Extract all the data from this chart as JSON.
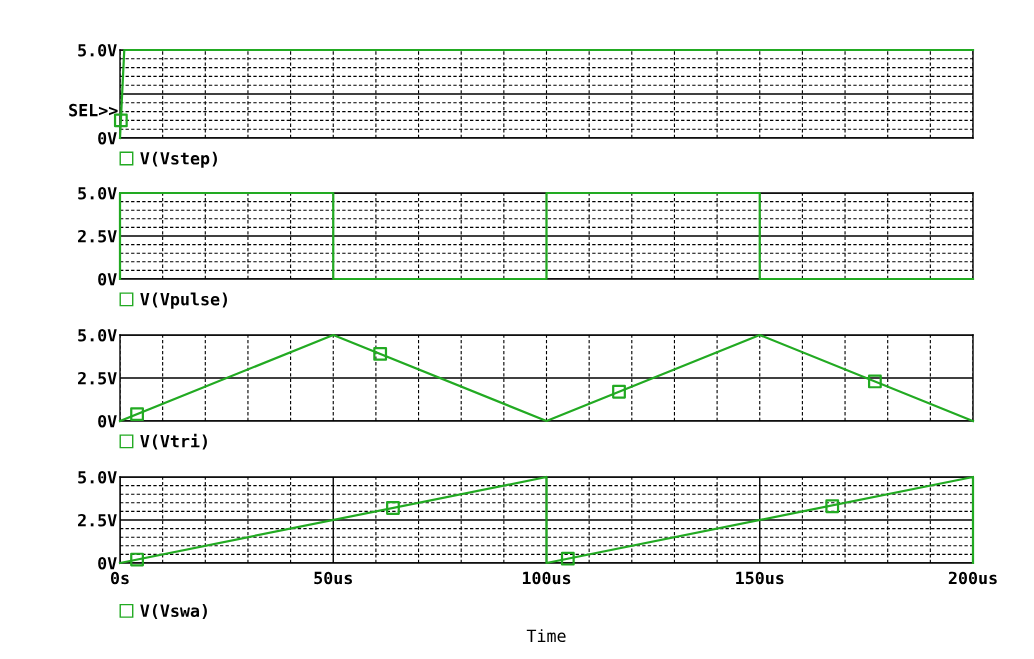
{
  "chart_data": [
    {
      "type": "line",
      "series": [
        {
          "name": "V(Vstep)",
          "color": "#22aa22",
          "x": [
            0,
            1,
            200
          ],
          "values": [
            0,
            5,
            5
          ]
        },
        {
          "type": "scatter",
          "color": "#22aa22",
          "marker": "square",
          "x": [
            0.2
          ],
          "values": [
            1.0
          ]
        }
      ],
      "xlim": [
        0,
        200
      ],
      "xticks": [
        {
          "value": 0,
          "label": null
        },
        {
          "value": 10,
          "label": null
        },
        {
          "value": 20,
          "label": null
        },
        {
          "value": 30,
          "label": null
        },
        {
          "value": 40,
          "label": null
        },
        {
          "value": 50,
          "label": null
        },
        {
          "value": 60,
          "label": null
        },
        {
          "value": 70,
          "label": null
        },
        {
          "value": 80,
          "label": null
        },
        {
          "value": 90,
          "label": null
        },
        {
          "value": 100,
          "label": null
        },
        {
          "value": 110,
          "label": null
        },
        {
          "value": 120,
          "label": null
        },
        {
          "value": 130,
          "label": null
        },
        {
          "value": 140,
          "label": null
        },
        {
          "value": 150,
          "label": null
        },
        {
          "value": 160,
          "label": null
        },
        {
          "value": 170,
          "label": null
        },
        {
          "value": 180,
          "label": null
        },
        {
          "value": 190,
          "label": null
        },
        {
          "value": 200,
          "label": null
        }
      ],
      "ylim": [
        0,
        5
      ],
      "yticks": [
        {
          "value": 0,
          "label": "0V"
        },
        {
          "value": 0.5,
          "label": null
        },
        {
          "value": 1.0,
          "label": null
        },
        {
          "value": 1.5,
          "label": null
        },
        {
          "value": 2.0,
          "label": null
        },
        {
          "value": 2.5,
          "label": null
        },
        {
          "value": 3.0,
          "label": null
        },
        {
          "value": 3.5,
          "label": null
        },
        {
          "value": 4.0,
          "label": null
        },
        {
          "value": 4.5,
          "label": null
        },
        {
          "value": 5,
          "label": "5.0V"
        }
      ],
      "ref_lines": [
        {
          "axis": "y",
          "value": 2.5,
          "label": null,
          "color": "#000000",
          "line_style": "solid"
        }
      ],
      "annotations": [
        "SEL>>"
      ],
      "grid": true,
      "legend": "bottom left",
      "tick_labels": "y",
      "marker": "none",
      "line_style": "solid"
    },
    {
      "type": "line",
      "series": [
        {
          "name": "V(Vpulse)",
          "color": "#22aa22",
          "x": [
            0,
            0,
            50,
            50,
            100,
            100,
            150,
            150,
            200
          ],
          "values": [
            0,
            5,
            5,
            0,
            0,
            5,
            5,
            0,
            0
          ]
        }
      ],
      "xlim": [
        0,
        200
      ],
      "xticks": [
        {
          "value": 0,
          "label": null
        },
        {
          "value": 10,
          "label": null
        },
        {
          "value": 20,
          "label": null
        },
        {
          "value": 30,
          "label": null
        },
        {
          "value": 40,
          "label": null
        },
        {
          "value": 50,
          "label": null
        },
        {
          "value": 60,
          "label": null
        },
        {
          "value": 70,
          "label": null
        },
        {
          "value": 80,
          "label": null
        },
        {
          "value": 90,
          "label": null
        },
        {
          "value": 100,
          "label": null
        },
        {
          "value": 110,
          "label": null
        },
        {
          "value": 120,
          "label": null
        },
        {
          "value": 130,
          "label": null
        },
        {
          "value": 140,
          "label": null
        },
        {
          "value": 150,
          "label": null
        },
        {
          "value": 160,
          "label": null
        },
        {
          "value": 170,
          "label": null
        },
        {
          "value": 180,
          "label": null
        },
        {
          "value": 190,
          "label": null
        },
        {
          "value": 200,
          "label": null
        }
      ],
      "ylim": [
        0,
        5
      ],
      "yticks": [
        {
          "value": 0,
          "label": "0V"
        },
        {
          "value": 0.5,
          "label": null
        },
        {
          "value": 1.0,
          "label": null
        },
        {
          "value": 1.5,
          "label": null
        },
        {
          "value": 2.0,
          "label": null
        },
        {
          "value": 2.5,
          "label": "2.5V"
        },
        {
          "value": 3.0,
          "label": null
        },
        {
          "value": 3.5,
          "label": null
        },
        {
          "value": 4.0,
          "label": null
        },
        {
          "value": 4.5,
          "label": null
        },
        {
          "value": 5,
          "label": "5.0V"
        }
      ],
      "ref_lines": [
        {
          "axis": "y",
          "value": 2.5,
          "label": null,
          "color": "#000000",
          "line_style": "solid"
        }
      ],
      "grid": true,
      "legend": "bottom left",
      "tick_labels": "y",
      "marker": "none",
      "line_style": "solid"
    },
    {
      "type": "line",
      "series": [
        {
          "name": "V(Vtri)",
          "color": "#22aa22",
          "x": [
            0,
            50,
            100,
            150,
            200
          ],
          "values": [
            0,
            5,
            0,
            5,
            0
          ]
        },
        {
          "type": "scatter",
          "color": "#22aa22",
          "marker": "square",
          "x": [
            4,
            61,
            117,
            177
          ],
          "values": [
            0.4,
            3.9,
            1.7,
            2.3
          ]
        }
      ],
      "xlim": [
        0,
        200
      ],
      "xticks": [
        {
          "value": 0,
          "label": null
        },
        {
          "value": 10,
          "label": null
        },
        {
          "value": 20,
          "label": null
        },
        {
          "value": 30,
          "label": null
        },
        {
          "value": 40,
          "label": null
        },
        {
          "value": 50,
          "label": null
        },
        {
          "value": 60,
          "label": null
        },
        {
          "value": 70,
          "label": null
        },
        {
          "value": 80,
          "label": null
        },
        {
          "value": 90,
          "label": null
        },
        {
          "value": 100,
          "label": null
        },
        {
          "value": 110,
          "label": null
        },
        {
          "value": 120,
          "label": null
        },
        {
          "value": 130,
          "label": null
        },
        {
          "value": 140,
          "label": null
        },
        {
          "value": 150,
          "label": null
        },
        {
          "value": 160,
          "label": null
        },
        {
          "value": 170,
          "label": null
        },
        {
          "value": 180,
          "label": null
        },
        {
          "value": 190,
          "label": null
        },
        {
          "value": 200,
          "label": null
        }
      ],
      "ylim": [
        0,
        5
      ],
      "yticks": [
        {
          "value": 0,
          "label": "0V"
        },
        {
          "value": 2.5,
          "label": "2.5V"
        },
        {
          "value": 5,
          "label": "5.0V"
        }
      ],
      "ref_lines": [
        {
          "axis": "y",
          "value": 2.5,
          "label": null,
          "color": "#000000",
          "line_style": "solid"
        }
      ],
      "grid": true,
      "legend": "bottom left",
      "tick_labels": "y",
      "marker": "none",
      "line_style": "solid"
    },
    {
      "type": "line",
      "xlabel": "Time",
      "series": [
        {
          "name": "V(Vswa)",
          "color": "#22aa22",
          "x": [
            0,
            100,
            100,
            200,
            200
          ],
          "values": [
            0,
            5,
            0,
            5,
            0
          ]
        },
        {
          "type": "scatter",
          "color": "#22aa22",
          "marker": "square",
          "x": [
            4,
            64,
            105,
            167
          ],
          "values": [
            0.2,
            3.2,
            0.25,
            3.3
          ]
        }
      ],
      "xlim": [
        0,
        200
      ],
      "xticks": [
        {
          "value": 0,
          "label": "0s"
        },
        {
          "value": 10,
          "label": null
        },
        {
          "value": 20,
          "label": null
        },
        {
          "value": 30,
          "label": null
        },
        {
          "value": 40,
          "label": null
        },
        {
          "value": 50,
          "label": "50us"
        },
        {
          "value": 60,
          "label": null
        },
        {
          "value": 70,
          "label": null
        },
        {
          "value": 80,
          "label": null
        },
        {
          "value": 90,
          "label": null
        },
        {
          "value": 100,
          "label": "100us"
        },
        {
          "value": 110,
          "label": null
        },
        {
          "value": 120,
          "label": null
        },
        {
          "value": 130,
          "label": null
        },
        {
          "value": 140,
          "label": null
        },
        {
          "value": 150,
          "label": "150us"
        },
        {
          "value": 160,
          "label": null
        },
        {
          "value": 170,
          "label": null
        },
        {
          "value": 180,
          "label": null
        },
        {
          "value": 190,
          "label": null
        },
        {
          "value": 200,
          "label": "200us"
        }
      ],
      "ylim": [
        0,
        5
      ],
      "yticks": [
        {
          "value": 0,
          "label": "0V"
        },
        {
          "value": 0.5,
          "label": null
        },
        {
          "value": 1.0,
          "label": null
        },
        {
          "value": 1.5,
          "label": null
        },
        {
          "value": 2.0,
          "label": null
        },
        {
          "value": 2.5,
          "label": "2.5V"
        },
        {
          "value": 3.0,
          "label": null
        },
        {
          "value": 3.5,
          "label": null
        },
        {
          "value": 4.0,
          "label": null
        },
        {
          "value": 4.5,
          "label": null
        },
        {
          "value": 5,
          "label": "5.0V"
        }
      ],
      "grid": true,
      "legend": "bottom left",
      "marker": "none",
      "line_style": "solid"
    }
  ]
}
